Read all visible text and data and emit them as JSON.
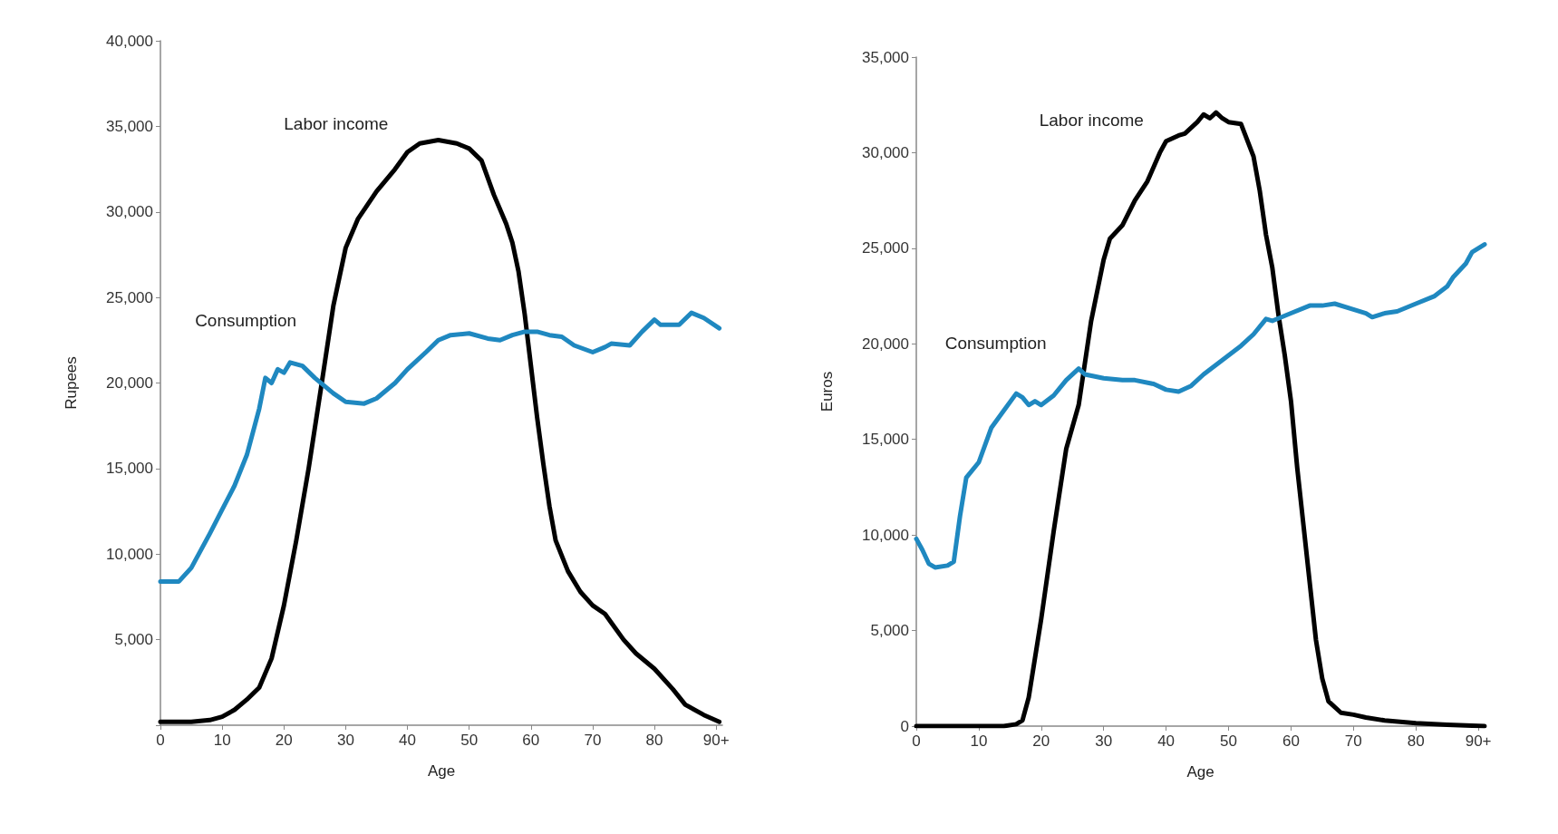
{
  "chart_data": [
    {
      "type": "line",
      "xlabel": "Age",
      "ylabel": "Rupees",
      "xlim": [
        0,
        91
      ],
      "xticks": [
        0,
        10,
        20,
        30,
        40,
        50,
        60,
        70,
        80,
        {
          "value": 90,
          "label": "90+"
        }
      ],
      "ylim": [
        0,
        40000
      ],
      "yticks": [
        {
          "value": 0,
          "label": null
        },
        {
          "value": 5000,
          "label": "5,000"
        },
        {
          "value": 10000,
          "label": "10,000"
        },
        {
          "value": 15000,
          "label": "15,000"
        },
        {
          "value": 20000,
          "label": "20,000"
        },
        {
          "value": 25000,
          "label": "25,000"
        },
        {
          "value": 30000,
          "label": "30,000"
        },
        {
          "value": 35000,
          "label": "35,000"
        },
        {
          "value": 40000,
          "label": "40,000"
        }
      ],
      "grid": false,
      "legend": false,
      "marker": "none",
      "line_style": "solid",
      "series": [
        {
          "name": "Labor income",
          "color": "#000000",
          "x": [
            0,
            5,
            8,
            10,
            12,
            14,
            16,
            18,
            20,
            22,
            24,
            26,
            28,
            30,
            32,
            35,
            38,
            40,
            42,
            45,
            48,
            50,
            52,
            54,
            56,
            57,
            58,
            59,
            60,
            61,
            62,
            63,
            64,
            66,
            68,
            70,
            72,
            73,
            75,
            77,
            80,
            83,
            85,
            88,
            90.5
          ],
          "values": [
            200,
            200,
            300,
            500,
            900,
            1500,
            2200,
            3900,
            7000,
            10800,
            15000,
            19700,
            24500,
            27900,
            29600,
            31200,
            32500,
            33500,
            34000,
            34200,
            34000,
            33700,
            33000,
            31000,
            29300,
            28200,
            26500,
            24000,
            21000,
            18000,
            15300,
            12800,
            10800,
            9000,
            7800,
            7000,
            6500,
            6000,
            5000,
            4200,
            3300,
            2100,
            1200,
            600,
            200
          ]
        },
        {
          "name": "Consumption",
          "color": "#1f88c0",
          "x": [
            0,
            2,
            3,
            5,
            8,
            10,
            12,
            14,
            16,
            17,
            18,
            19,
            20,
            21,
            23,
            25,
            28,
            30,
            33,
            35,
            38,
            40,
            43,
            45,
            47,
            50,
            53,
            55,
            57,
            59,
            61,
            63,
            65,
            67,
            70,
            72,
            73,
            76,
            78,
            80,
            81,
            84,
            86,
            88,
            90.5
          ],
          "values": [
            8400,
            8400,
            8400,
            9200,
            11200,
            12600,
            14000,
            15800,
            18500,
            20300,
            20000,
            20800,
            20600,
            21200,
            21000,
            20300,
            19400,
            18900,
            18800,
            19100,
            20000,
            20800,
            21800,
            22500,
            22800,
            22900,
            22600,
            22500,
            22800,
            23000,
            23000,
            22800,
            22700,
            22200,
            21800,
            22100,
            22300,
            22200,
            23000,
            23700,
            23400,
            23400,
            24100,
            23800,
            23200
          ]
        }
      ]
    },
    {
      "type": "line",
      "xlabel": "Age",
      "ylabel": "Euros",
      "xlim": [
        0,
        91
      ],
      "xticks": [
        0,
        10,
        20,
        30,
        40,
        50,
        60,
        70,
        80,
        {
          "value": 90,
          "label": "90+"
        }
      ],
      "ylim": [
        0,
        35000
      ],
      "yticks": [
        0,
        {
          "value": 5000,
          "label": "5,000"
        },
        {
          "value": 10000,
          "label": "10,000"
        },
        {
          "value": 15000,
          "label": "15,000"
        },
        {
          "value": 20000,
          "label": "20,000"
        },
        {
          "value": 25000,
          "label": "25,000"
        },
        {
          "value": 30000,
          "label": "30,000"
        },
        {
          "value": 35000,
          "label": "35,000"
        }
      ],
      "grid": false,
      "legend": false,
      "marker": "none",
      "line_style": "solid",
      "series": [
        {
          "name": "Labor income",
          "color": "#000000",
          "x": [
            0,
            14,
            16,
            17,
            18,
            20,
            22,
            24,
            26,
            28,
            30,
            31,
            33,
            35,
            37,
            39,
            40,
            42,
            43,
            45,
            46,
            47,
            48,
            49,
            50,
            52,
            54,
            55,
            56,
            57,
            58,
            59,
            60,
            61,
            62,
            63,
            64,
            65,
            66,
            68,
            70,
            72,
            75,
            80,
            85,
            91
          ],
          "values": [
            0,
            0,
            100,
            300,
            1500,
            5600,
            10200,
            14500,
            16800,
            21200,
            24400,
            25500,
            26200,
            27500,
            28500,
            30000,
            30600,
            30900,
            31000,
            31600,
            32000,
            31800,
            32100,
            31800,
            31600,
            31500,
            29800,
            28000,
            25700,
            24000,
            21500,
            19400,
            17000,
            13500,
            10500,
            7500,
            4500,
            2500,
            1300,
            700,
            600,
            450,
            300,
            150,
            70,
            0
          ]
        },
        {
          "name": "Consumption",
          "color": "#1f88c0",
          "x": [
            0,
            1,
            2,
            3,
            5,
            6,
            7,
            8,
            10,
            12,
            14,
            16,
            17,
            18,
            19,
            20,
            22,
            24,
            26,
            27,
            30,
            33,
            35,
            38,
            40,
            42,
            44,
            46,
            48,
            50,
            52,
            54,
            56,
            57,
            60,
            63,
            65,
            67,
            70,
            72,
            73,
            75,
            77,
            80,
            83,
            85,
            86,
            88,
            89,
            91
          ],
          "values": [
            9800,
            9200,
            8500,
            8300,
            8400,
            8600,
            11000,
            13000,
            13800,
            15600,
            16500,
            17400,
            17200,
            16800,
            17000,
            16800,
            17300,
            18100,
            18700,
            18400,
            18200,
            18100,
            18100,
            17900,
            17600,
            17500,
            17800,
            18400,
            18900,
            19400,
            19900,
            20500,
            21300,
            21200,
            21600,
            22000,
            22000,
            22100,
            21800,
            21600,
            21400,
            21600,
            21700,
            22100,
            22500,
            23000,
            23500,
            24200,
            24800,
            25200
          ]
        }
      ]
    }
  ]
}
